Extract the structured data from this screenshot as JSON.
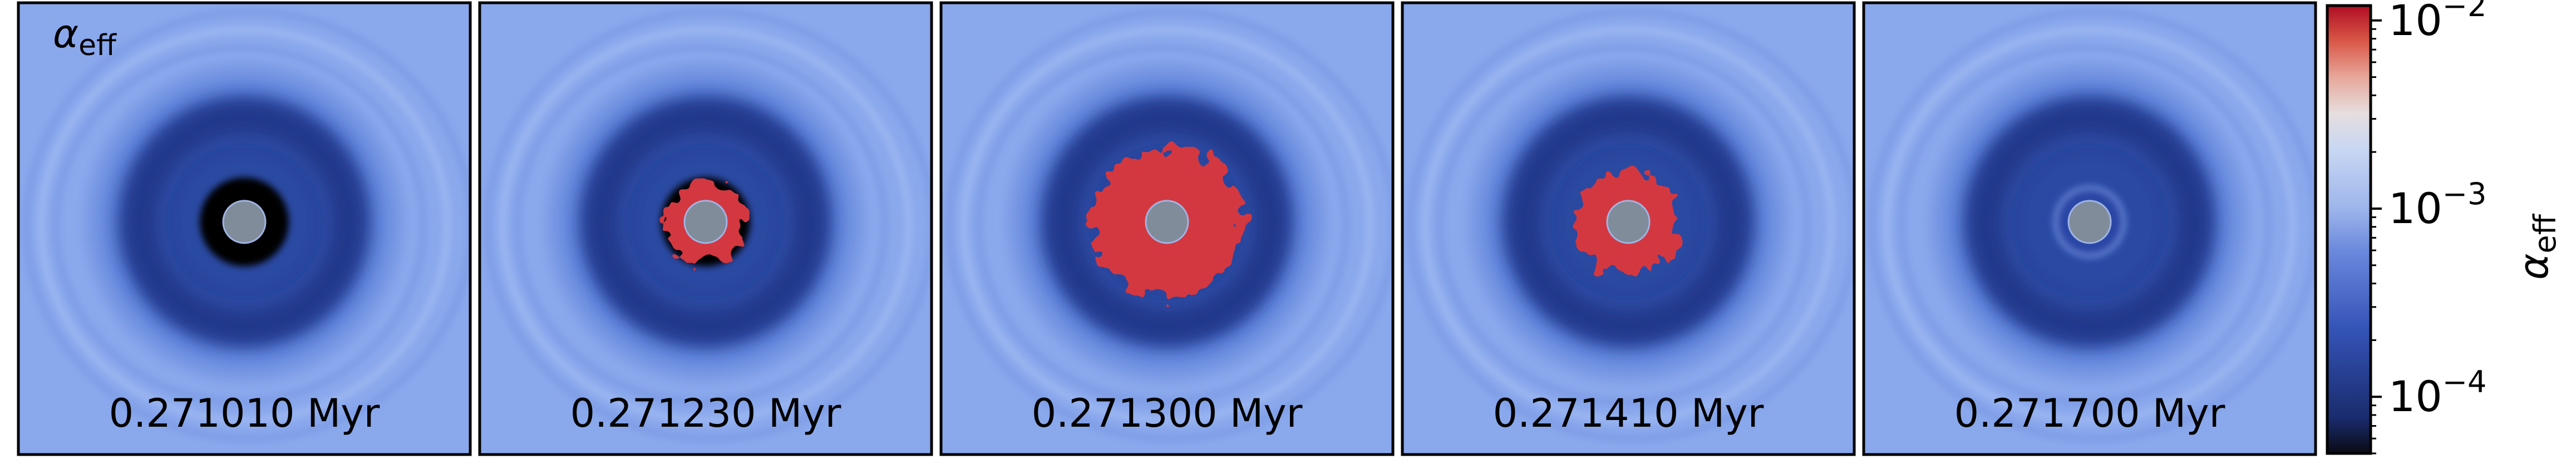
{
  "chart_data": {
    "type": "heatmap",
    "quantity_label": "α",
    "quantity_subscript": "eff",
    "panels": [
      {
        "time": "0.271010 Myr",
        "red_region_radius": 0.0,
        "dark_ring": true,
        "patchy": false
      },
      {
        "time": "0.271230 Myr",
        "red_region_radius": 0.29,
        "dark_ring": true,
        "patchy": true
      },
      {
        "time": "0.271300 Myr",
        "red_region_radius": 0.62,
        "dark_ring": false,
        "patchy": true
      },
      {
        "time": "0.271410 Myr",
        "red_region_radius": 0.4,
        "dark_ring": false,
        "patchy": true
      },
      {
        "time": "0.271700 Myr",
        "red_region_radius": 0.0,
        "dark_ring": false,
        "patchy": false
      }
    ],
    "colorbar": {
      "label": "α",
      "label_subscript": "eff",
      "scale": "log",
      "range": [
        5e-05,
        0.012
      ],
      "colormap": [
        "#0a0a14",
        "#23479e",
        "#6a88dc",
        "#c8d7f2",
        "#ead4cc",
        "#d95848",
        "#b00d22"
      ],
      "ticks": [
        {
          "value": 0.0001,
          "base": "10",
          "exponent": "−4"
        },
        {
          "value": 0.001,
          "base": "10",
          "exponent": "−3"
        },
        {
          "value": 0.01,
          "base": "10",
          "exponent": "−2"
        }
      ]
    },
    "colors": {
      "background": "#8aa8ec",
      "disk_mid": "#3e62c6",
      "disk_dark": "#1c3182",
      "inner_ring": "#000000",
      "active_region": "#d33841",
      "central_sink": "#808c9a"
    }
  }
}
